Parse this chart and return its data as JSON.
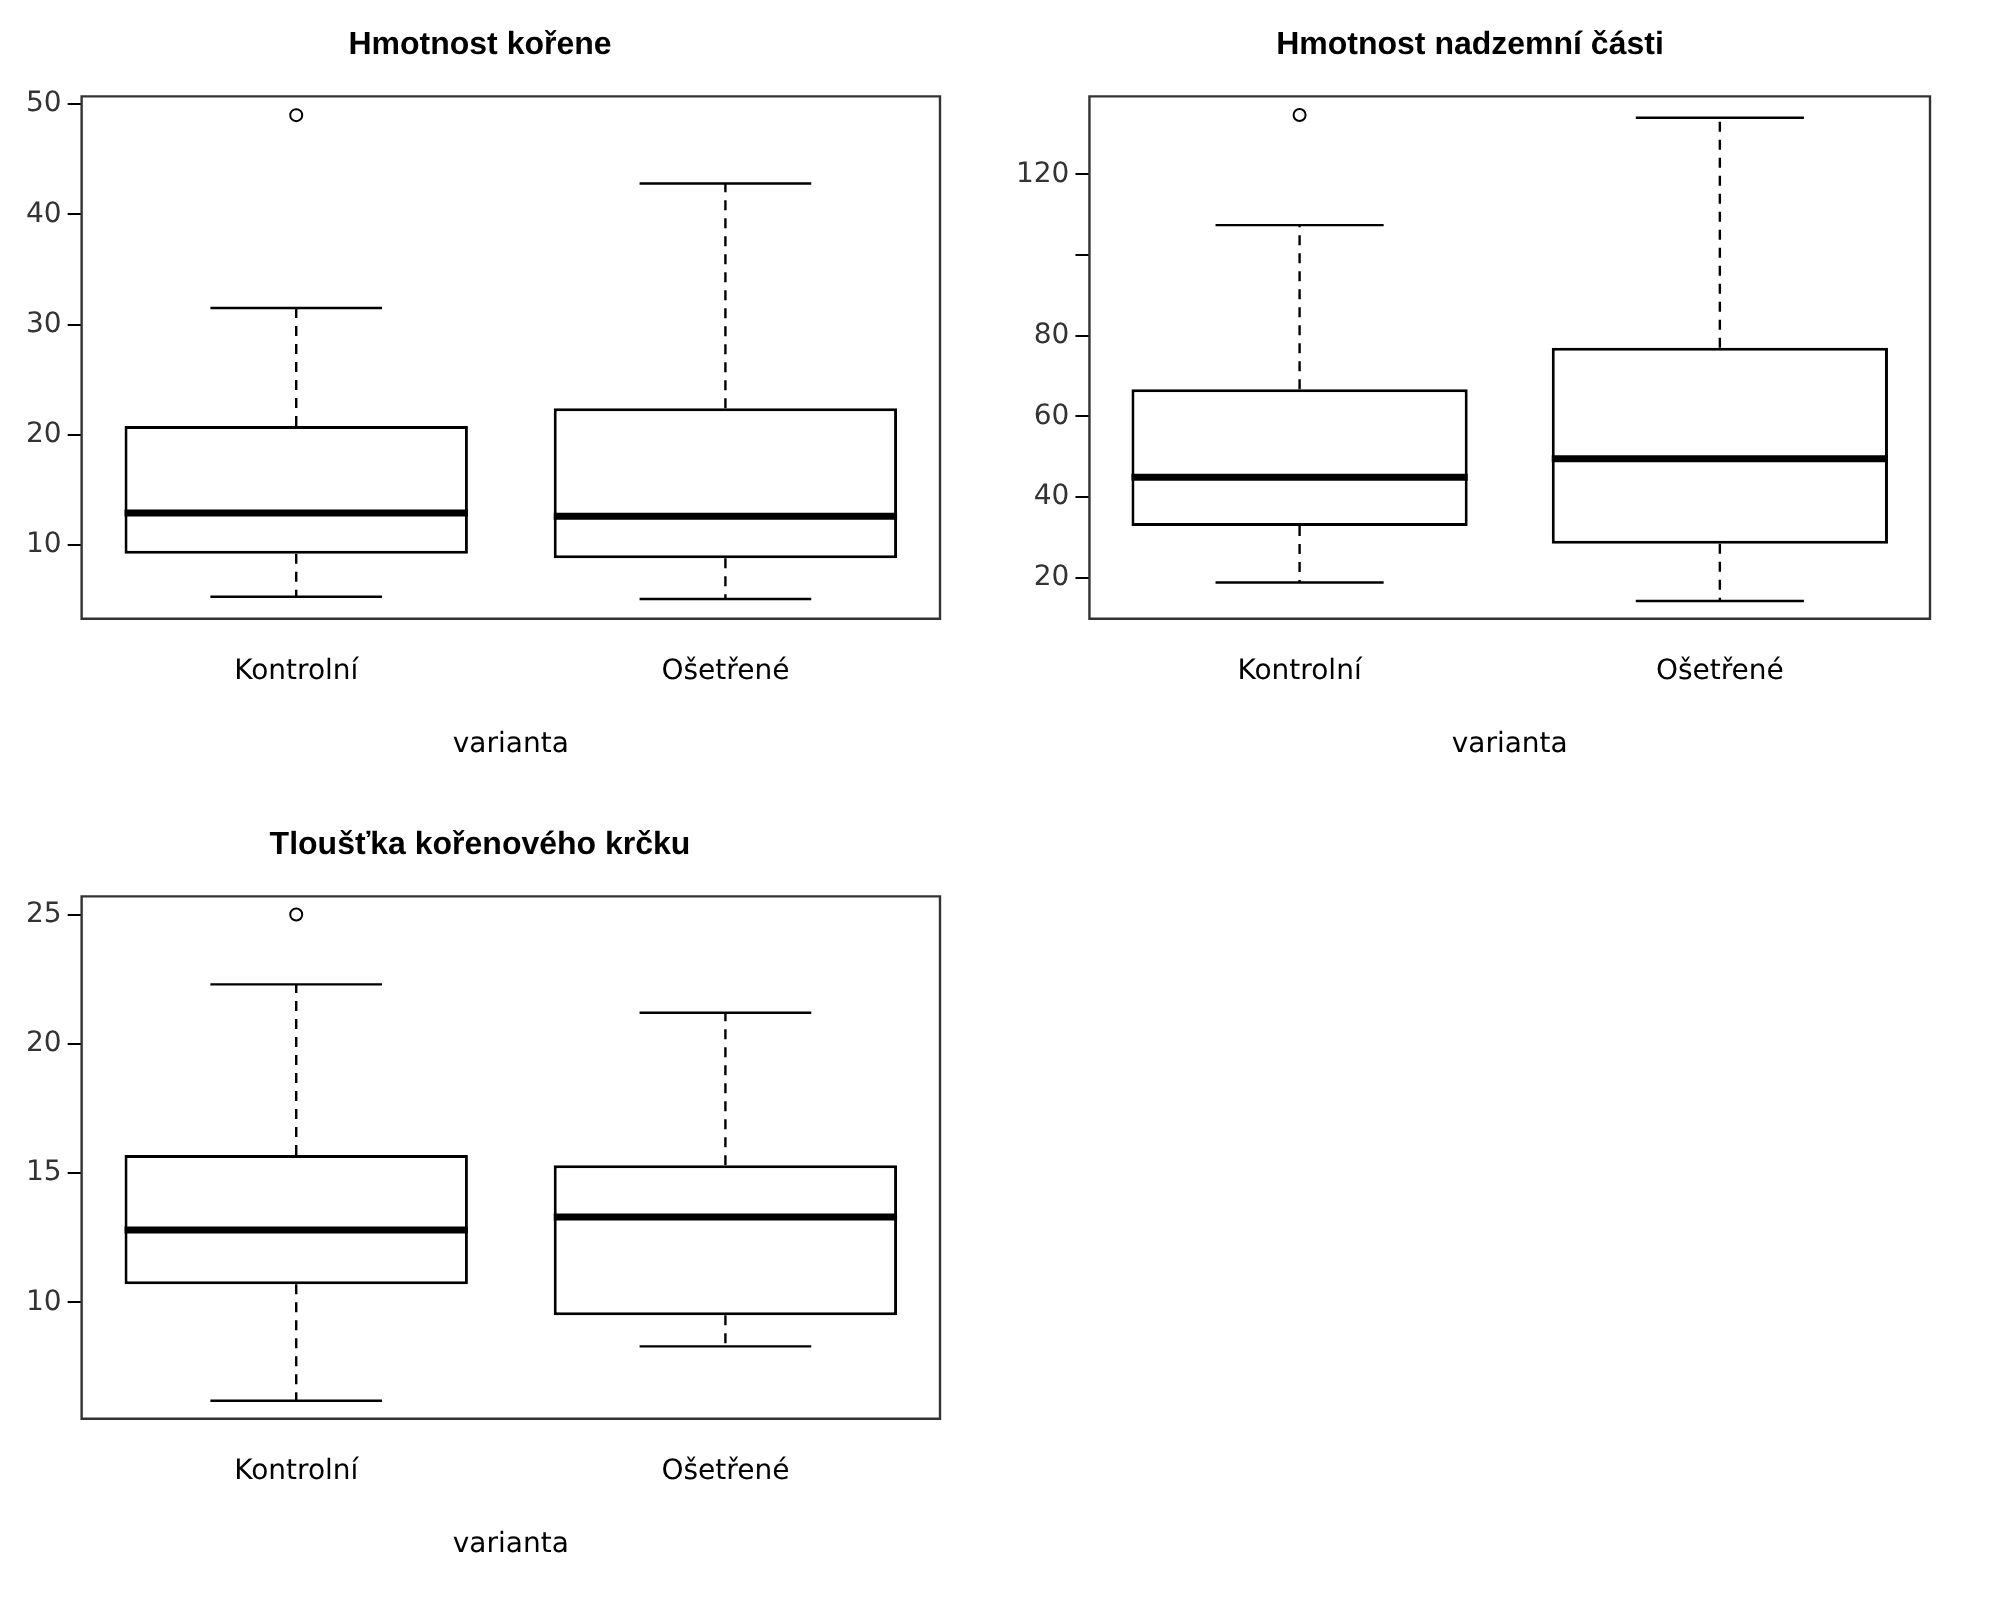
{
  "chart_data": [
    {
      "type": "box",
      "title": "Hmotnost kořene",
      "xlabel": "varianta",
      "categories": [
        "Kontrolní",
        "Ošetřené"
      ],
      "boxes": [
        {
          "low": 5.3,
          "q1": 9.2,
          "median": 12.9,
          "q3": 20.8,
          "high": 31.5,
          "outliers": [
            49.0
          ]
        },
        {
          "low": 5.1,
          "q1": 8.8,
          "median": 12.6,
          "q3": 22.4,
          "high": 42.8
        }
      ],
      "ylim": [
        3.3,
        50.7
      ],
      "yticks": [
        10,
        20,
        30,
        40,
        50
      ]
    },
    {
      "type": "box",
      "title": "Hmotnost nadzemní části",
      "xlabel": "varianta",
      "categories": [
        "Kontrolní",
        "Ošetřené"
      ],
      "boxes": [
        {
          "low": 18.8,
          "q1": 32.8,
          "median": 44.9,
          "q3": 66.7,
          "high": 107.4,
          "outliers": [
            134.7
          ]
        },
        {
          "low": 14.2,
          "q1": 28.4,
          "median": 49.5,
          "q3": 77.0,
          "high": 134.0
        }
      ],
      "ylim": [
        9.8,
        139.3
      ],
      "yticks": [
        20,
        40,
        60,
        80,
        {
          "value": 100,
          "label": null
        },
        120
      ]
    },
    {
      "type": "box",
      "title": "Tloušťka kořenového krčku",
      "xlabel": "varianta",
      "categories": [
        "Kontrolní",
        "Ošetřené"
      ],
      "boxes": [
        {
          "low": 6.2,
          "q1": 10.7,
          "median": 12.8,
          "q3": 15.7,
          "high": 22.3,
          "outliers": [
            25.0
          ]
        },
        {
          "low": 8.3,
          "q1": 9.5,
          "median": 13.3,
          "q3": 15.3,
          "high": 21.2
        }
      ],
      "ylim": [
        5.5,
        25.7
      ],
      "yticks": [
        10,
        15,
        20,
        25
      ]
    }
  ]
}
